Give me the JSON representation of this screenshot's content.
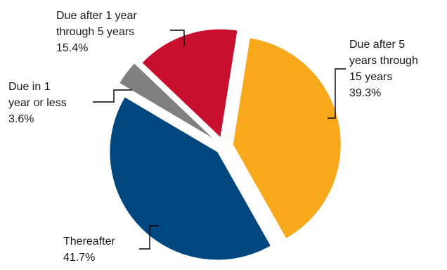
{
  "chart_data": {
    "type": "pie",
    "slices": [
      {
        "label": "Due after 5 years through 15 years",
        "label_lines": [
          "Due after 5",
          "years through",
          "15 years"
        ],
        "value": 39.3,
        "value_label": "39.3%",
        "color": "#F7A81B"
      },
      {
        "label": "Thereafter",
        "label_lines": [
          "Thereafter"
        ],
        "value": 41.7,
        "value_label": "41.7%",
        "color": "#00467F"
      },
      {
        "label": "Due in 1 year or less",
        "label_lines": [
          "Due in 1",
          "year or less"
        ],
        "value": 3.6,
        "value_label": "3.6%",
        "color": "#808080"
      },
      {
        "label": "Due after 1 year through 5 years",
        "label_lines": [
          "Due after 1 year",
          "through 5 years"
        ],
        "value": 15.4,
        "value_label": "15.4%",
        "color": "#C8102E"
      }
    ]
  }
}
